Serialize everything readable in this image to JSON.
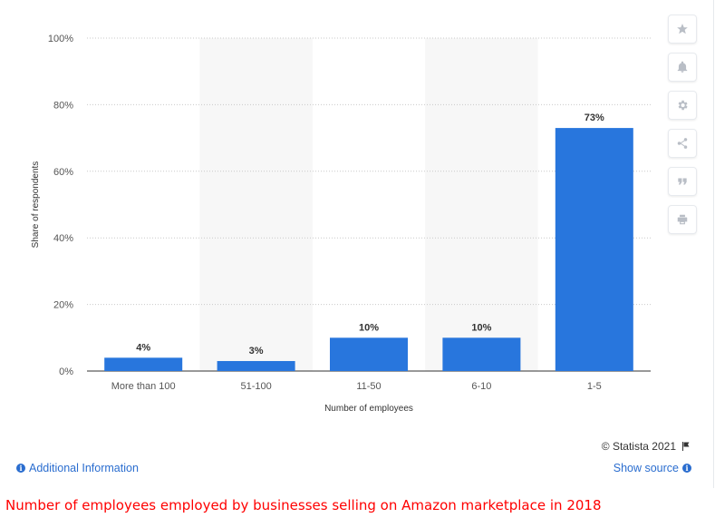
{
  "chart_data": {
    "type": "bar",
    "categories": [
      "More than 100",
      "51-100",
      "11-50",
      "6-10",
      "1-5"
    ],
    "values": [
      4,
      3,
      10,
      10,
      73
    ],
    "data_labels": [
      "4%",
      "3%",
      "10%",
      "10%",
      "73%"
    ],
    "xlabel": "Number of employees",
    "ylabel": "Share of respondents",
    "ylim": [
      0,
      100
    ],
    "yticks": [
      "0%",
      "20%",
      "40%",
      "60%",
      "80%",
      "100%"
    ],
    "grid": true,
    "bar_color": "#2876dd"
  },
  "toolbar": {
    "icons": [
      "star-icon",
      "bell-icon",
      "gear-icon",
      "share-icon",
      "quote-icon",
      "print-icon"
    ]
  },
  "footer": {
    "copyright": "© Statista 2021",
    "additional_info": "Additional Information",
    "show_source": "Show source"
  },
  "caption": "Number of employees employed by businesses selling on Amazon marketplace in 2018"
}
